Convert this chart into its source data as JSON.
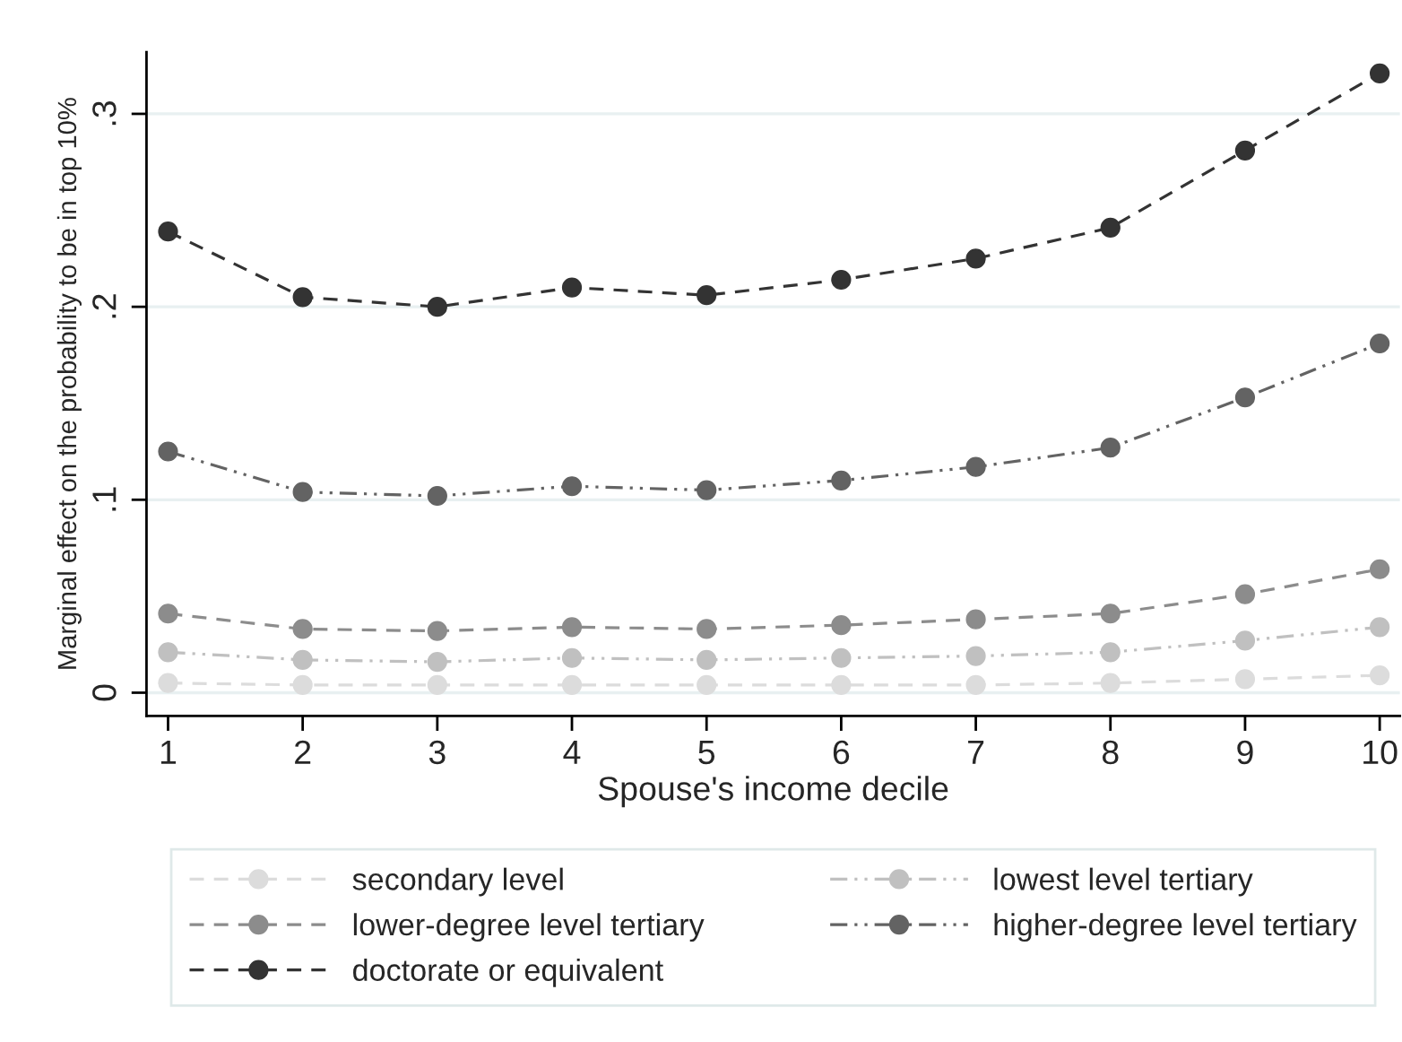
{
  "chart_data": {
    "type": "line",
    "xlabel": "Spouse's income decile",
    "ylabel": "Marginal effect on the probability to be in top 10%",
    "x": [
      1,
      2,
      3,
      4,
      5,
      6,
      7,
      8,
      9,
      10
    ],
    "xlim": [
      0.84,
      10.15
    ],
    "xticks": [
      1,
      2,
      3,
      4,
      5,
      6,
      7,
      8,
      9,
      10
    ],
    "ylim": [
      -0.012,
      0.332
    ],
    "yticks": [
      0,
      {
        "value": 0.1,
        "label": ".1"
      },
      {
        "value": 0.2,
        "label": ".2"
      },
      {
        "value": 0.3,
        "label": ".3"
      }
    ],
    "grid": "y",
    "legend": "bottom",
    "marker": "circle",
    "series": [
      {
        "name": "secondary level",
        "color": "#dcdcdc",
        "line_style": "dashed",
        "values": [
          0.005,
          0.004,
          0.004,
          0.004,
          0.004,
          0.004,
          0.004,
          0.005,
          0.007,
          0.009
        ]
      },
      {
        "name": "lowest level tertiary",
        "color": "#c0c0c0",
        "line_style": "dashdot",
        "values": [
          0.021,
          0.017,
          0.016,
          0.018,
          0.017,
          0.018,
          0.019,
          0.021,
          0.027,
          0.034
        ]
      },
      {
        "name": "lower-degree level tertiary",
        "color": "#8c8c8c",
        "line_style": "dashed",
        "values": [
          0.041,
          0.033,
          0.032,
          0.034,
          0.033,
          0.035,
          0.038,
          0.041,
          0.051,
          0.064
        ]
      },
      {
        "name": "higher-degree level tertiary",
        "color": "#636363",
        "line_style": "dashdot",
        "values": [
          0.125,
          0.104,
          0.102,
          0.107,
          0.105,
          0.11,
          0.117,
          0.127,
          0.153,
          0.181
        ]
      },
      {
        "name": "doctorate or equivalent",
        "color": "#333333",
        "line_style": "dashed",
        "values": [
          0.239,
          0.205,
          0.2,
          0.21,
          0.206,
          0.214,
          0.225,
          0.241,
          0.281,
          0.321
        ]
      }
    ]
  }
}
